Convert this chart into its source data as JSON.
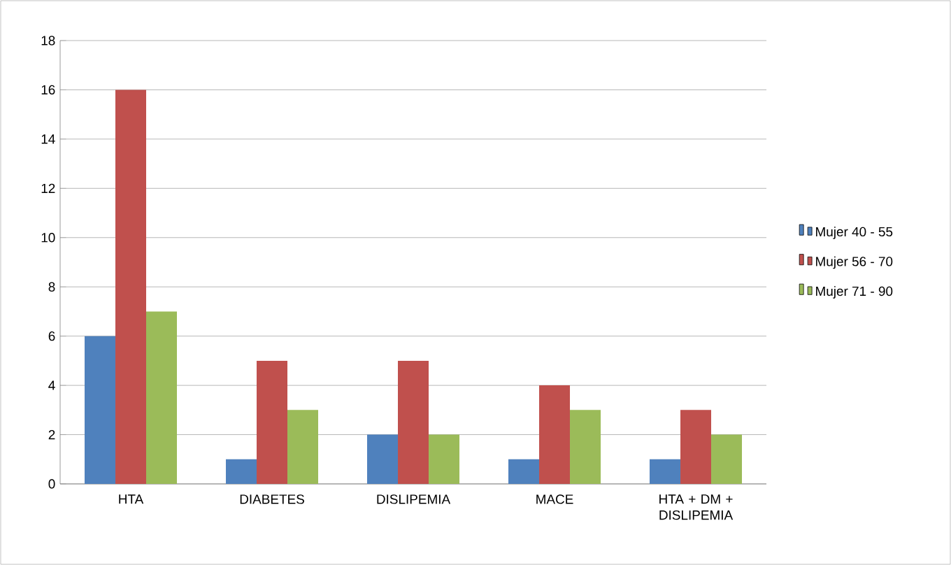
{
  "chart_data": {
    "type": "bar",
    "categories": [
      "HTA",
      "DIABETES",
      "DISLIPEMIA",
      "MACE",
      "HTA + DM + DISLIPEMIA"
    ],
    "series": [
      {
        "name": "Mujer 40 - 55",
        "color": "#4f81bd",
        "values": [
          6,
          1,
          2,
          1,
          1
        ]
      },
      {
        "name": "Mujer 56 - 70",
        "color": "#c0504d",
        "values": [
          16,
          5,
          5,
          4,
          3
        ]
      },
      {
        "name": "Mujer 71 - 90",
        "color": "#9bbb59",
        "values": [
          7,
          3,
          2,
          3,
          2
        ]
      }
    ],
    "ylim": [
      0,
      18
    ],
    "yticks": [
      0,
      2,
      4,
      6,
      8,
      10,
      12,
      14,
      16,
      18
    ],
    "grid": "y",
    "legend": "right"
  }
}
